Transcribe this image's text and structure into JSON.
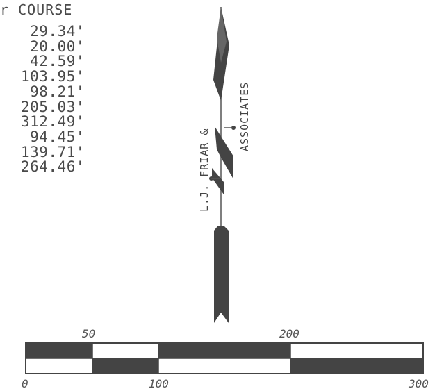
{
  "header": {
    "title": "r COURSE"
  },
  "distances": [
    "29.34'",
    "20.00'",
    "42.59'",
    "103.95'",
    "98.21'",
    "205.03'",
    "312.49'",
    "94.45'",
    "139.71'",
    "264.46'"
  ],
  "north_arrow": {
    "label_line_1": "L.J. FRIAR &",
    "label_line_2": "ASSOCIATES"
  },
  "scale_bar": {
    "top_labels": [
      "50",
      "200"
    ],
    "bottom_labels": [
      "0",
      "100",
      "300"
    ],
    "fill_color": "#444444"
  }
}
